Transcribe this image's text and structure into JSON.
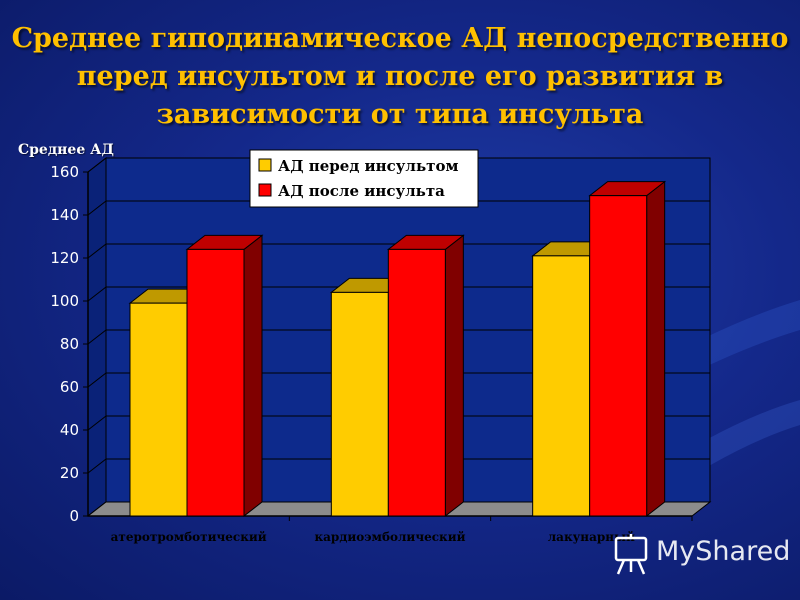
{
  "slide": {
    "title_lines": [
      "Среднее гиподинамическое АД непосредственно",
      "перед инсультом и после его развития в",
      "зависимости от типа инсульта"
    ],
    "y_axis_title": "Среднее  АД"
  },
  "chart_data": {
    "type": "bar",
    "categories": [
      "атеротромботический",
      "кардиоэмболический",
      "лакунарный"
    ],
    "series": [
      {
        "name": "АД перед инсультом",
        "values": [
          99,
          104,
          121
        ],
        "color": "#ffcc00"
      },
      {
        "name": "АД после инсульта",
        "values": [
          124,
          124,
          149
        ],
        "color": "#ff0000"
      }
    ],
    "ylim": [
      0,
      160
    ],
    "yticks": [
      0,
      20,
      40,
      60,
      80,
      100,
      120,
      140,
      160
    ],
    "ylabel": "Среднее  АД",
    "grid": true,
    "legend_position": "top-center",
    "colors": {
      "plot_background": "#0d2a8c",
      "floor": "#8c8c8c",
      "axis_text": "#ffffff"
    }
  },
  "watermark": {
    "text": "MyShared",
    "icon": "presentation-board-icon"
  }
}
